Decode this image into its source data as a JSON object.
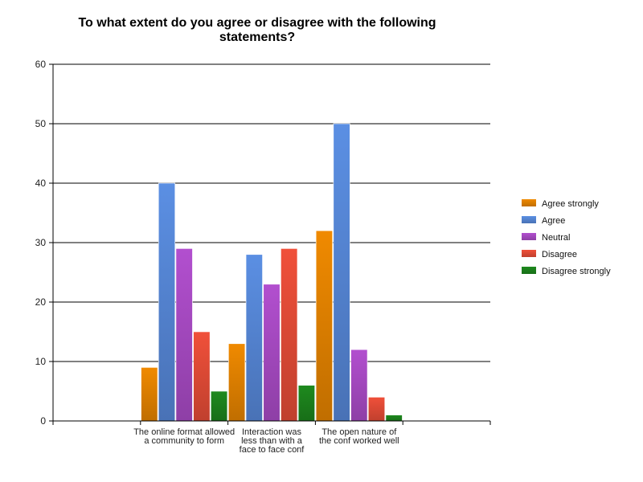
{
  "chart_data": {
    "type": "bar",
    "title": "To what extent do you agree or disagree with the following statements?",
    "title_lines": [
      "To what extent do you agree or disagree with the following",
      "statements?"
    ],
    "xlabel": "",
    "ylabel": "",
    "ylim": [
      0,
      60
    ],
    "yticks": [
      "0",
      "10",
      "20",
      "30",
      "40",
      "50",
      "60"
    ],
    "grid": true,
    "legend_position": "right",
    "categories": [
      "The online format allowed a community to form",
      "Interaction was less than with a face to face conf",
      "The open nature of the conf worked well"
    ],
    "category_lines": [
      [
        "The online format allowed",
        "a community to form"
      ],
      [
        "Interaction was",
        "less than with a",
        "face to face conf"
      ],
      [
        "The open nature of",
        "the conf worked well"
      ]
    ],
    "series": [
      {
        "name": "Agree strongly",
        "color": "#f08a00",
        "values": [
          9,
          13,
          32
        ]
      },
      {
        "name": "Agree",
        "color": "#5b8fe3",
        "values": [
          40,
          28,
          50
        ]
      },
      {
        "name": "Neutral",
        "color": "#b24fcf",
        "values": [
          29,
          23,
          12
        ]
      },
      {
        "name": "Disagree",
        "color": "#f0503a",
        "values": [
          15,
          29,
          4
        ]
      },
      {
        "name": "Disagree strongly",
        "color": "#1e8a1e",
        "values": [
          5,
          6,
          1
        ]
      }
    ]
  }
}
